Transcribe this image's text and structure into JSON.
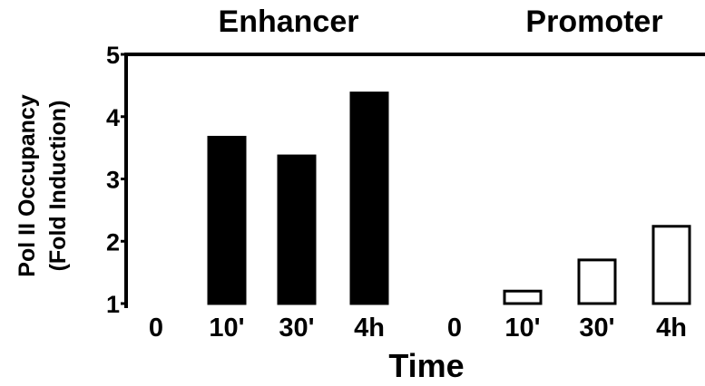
{
  "chart_data": {
    "type": "bar",
    "groups": [
      "Enhancer",
      "Promoter"
    ],
    "categories": [
      "0",
      "10'",
      "30'",
      "4h"
    ],
    "series": [
      {
        "name": "Enhancer",
        "values": [
          1.0,
          3.67,
          3.37,
          4.38
        ],
        "fill": "#000000"
      },
      {
        "name": "Promoter",
        "values": [
          1.0,
          1.2,
          1.7,
          2.24
        ],
        "fill": "#ffffff"
      }
    ],
    "xlabel": "Time",
    "ylabel_line1": "Pol II Occupancy",
    "ylabel_line2": "(Fold Induction)",
    "yticks": [
      1,
      2,
      3,
      4,
      5
    ],
    "ylim": [
      1,
      5
    ],
    "grid": false,
    "legend": "none",
    "bar_edge_color": "#000000"
  }
}
